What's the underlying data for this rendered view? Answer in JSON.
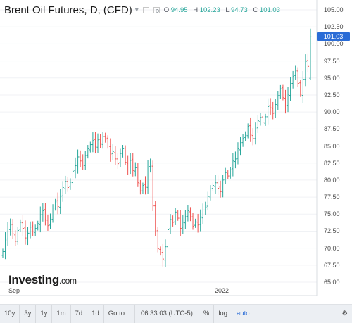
{
  "header": {
    "title": "Brent Oil Futures, D, (CFD)",
    "ohlc": [
      {
        "label": "O",
        "value": "94.95"
      },
      {
        "label": "H",
        "value": "102.23"
      },
      {
        "label": "L",
        "value": "94.73"
      },
      {
        "label": "C",
        "value": "101.03"
      }
    ]
  },
  "price_axis": {
    "labels": [
      "105.00",
      "102.50",
      "100.00",
      "97.50",
      "95.00",
      "92.50",
      "90.00",
      "87.50",
      "85.00",
      "82.50",
      "80.00",
      "77.50",
      "75.00",
      "72.50",
      "70.00",
      "67.50",
      "65.00"
    ],
    "current_price": "101.03"
  },
  "time_axis": {
    "labels": [
      "Sep",
      "2022"
    ]
  },
  "logo": {
    "name": "Investing",
    "suffix": ".com"
  },
  "toolbar": {
    "ranges": [
      "10y",
      "3y",
      "1y",
      "1m",
      "7d",
      "1d"
    ],
    "goto": "Go to...",
    "time": "06:33:03 (UTC-5)",
    "percent": "%",
    "log": "log",
    "auto": "auto"
  },
  "colors": {
    "up": "#26a69a",
    "down": "#ef5350",
    "price_line": "#2a6cd6"
  },
  "chart_data": {
    "type": "ohlc",
    "title": "Brent Oil Futures, D, (CFD)",
    "ylim": [
      64,
      106
    ],
    "x_ticks": [
      "Sep",
      "2022"
    ],
    "last": {
      "open": 94.95,
      "high": 102.23,
      "low": 94.73,
      "close": 101.03
    },
    "closes": [
      69.5,
      71.2,
      72.8,
      73.4,
      72.1,
      71.0,
      72.6,
      73.8,
      72.9,
      71.5,
      72.2,
      73.1,
      72.4,
      72.9,
      73.6,
      74.9,
      75.5,
      74.2,
      73.3,
      74.4,
      75.9,
      76.8,
      76.1,
      77.6,
      78.9,
      79.8,
      78.9,
      79.7,
      81.3,
      82.1,
      83.4,
      82.8,
      82.2,
      83.6,
      84.6,
      85.2,
      85.8,
      84.9,
      85.9,
      85.4,
      86.4,
      86.0,
      85.0,
      83.8,
      84.2,
      83.1,
      82.4,
      83.9,
      84.6,
      82.6,
      81.9,
      82.9,
      81.4,
      81.8,
      79.6,
      78.4,
      79.2,
      79.0,
      81.9,
      82.2,
      76.2,
      72.4,
      69.9,
      69.3,
      68.4,
      70.2,
      72.7,
      74.2,
      73.8,
      75.3,
      74.4,
      72.9,
      73.8,
      74.6,
      75.5,
      74.6,
      73.2,
      73.9,
      73.4,
      74.6,
      75.6,
      76.0,
      77.6,
      78.7,
      79.2,
      79.6,
      78.8,
      78.3,
      80.0,
      81.1,
      80.6,
      81.5,
      82.8,
      83.1,
      84.6,
      85.5,
      86.1,
      86.6,
      87.9,
      86.7,
      86.1,
      87.5,
      88.7,
      89.2,
      88.5,
      89.3,
      90.8,
      90.6,
      89.8,
      91.1,
      92.4,
      93.4,
      92.1,
      90.9,
      92.6,
      94.2,
      95.2,
      96.1,
      94.2,
      92.6,
      94.8,
      97.4,
      96.7,
      101.03
    ]
  }
}
